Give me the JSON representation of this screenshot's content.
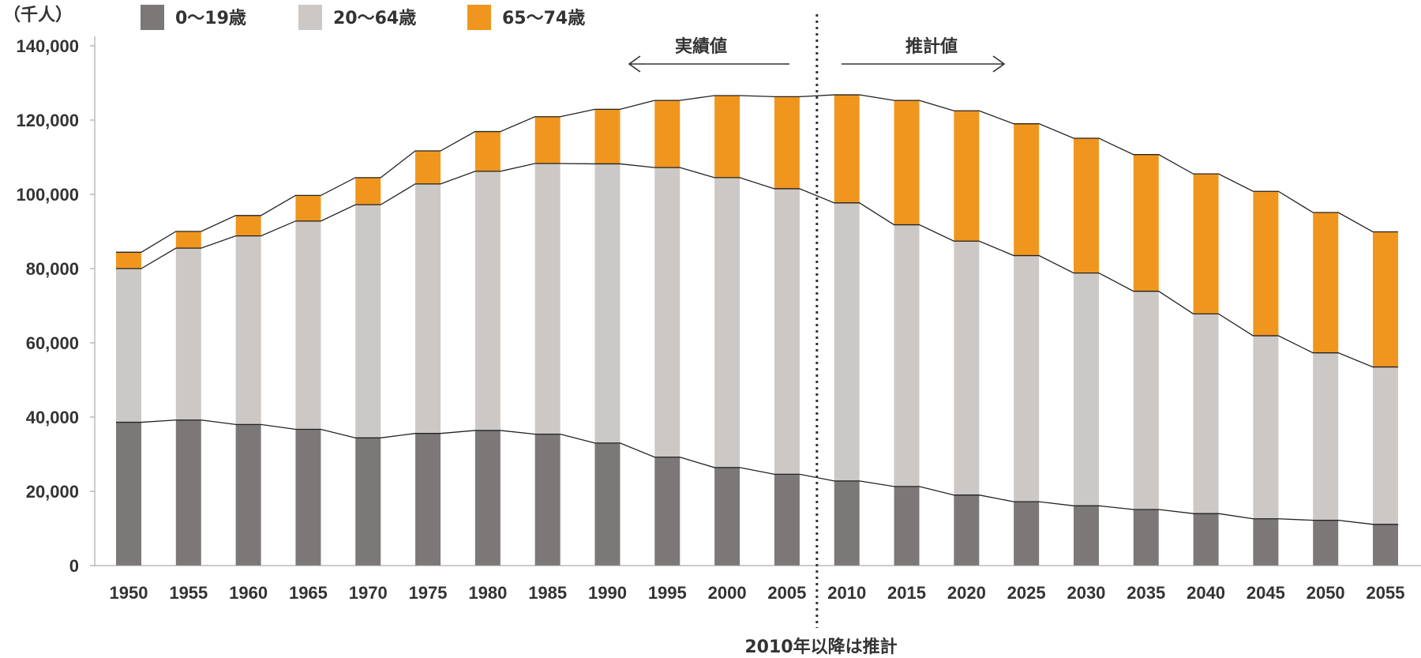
{
  "chart_data": {
    "type": "bar",
    "stacked": true,
    "unit_label": "（千人）",
    "categories": [
      "1950",
      "1955",
      "1960",
      "1965",
      "1970",
      "1975",
      "1980",
      "1985",
      "1990",
      "1995",
      "2000",
      "2005",
      "2010",
      "2015",
      "2020",
      "2025",
      "2030",
      "2035",
      "2040",
      "2045",
      "2050",
      "2055"
    ],
    "series": [
      {
        "name": "0〜19歳",
        "color": "#7b7877",
        "values": [
          38600,
          39200,
          38000,
          36700,
          34400,
          35600,
          36400,
          35400,
          33000,
          29200,
          26400,
          24600,
          22800,
          21300,
          19000,
          17200,
          16100,
          15100,
          14000,
          12600,
          12200,
          11100
        ]
      },
      {
        "name": "20〜64歳",
        "color": "#ccc8c6",
        "values": [
          41400,
          46300,
          50800,
          56100,
          62800,
          67200,
          69800,
          72900,
          75200,
          78000,
          78100,
          76900,
          74900,
          70500,
          68400,
          66300,
          62700,
          58800,
          53800,
          49300,
          45100,
          42400
        ]
      },
      {
        "name": "65〜74歳",
        "color": "#f0961e",
        "values": [
          4400,
          4500,
          5500,
          6900,
          7300,
          8900,
          10700,
          12600,
          14700,
          18100,
          22100,
          24800,
          29100,
          33500,
          35100,
          35500,
          36300,
          36800,
          37700,
          38900,
          37800,
          36400
        ]
      }
    ],
    "ylim": [
      0,
      140000
    ],
    "yticks": [
      0,
      20000,
      40000,
      60000,
      80000,
      100000,
      120000,
      140000
    ],
    "ytick_labels": [
      "0",
      "20,000",
      "40,000",
      "60,000",
      "80,000",
      "100,000",
      "120,000",
      "140,000"
    ],
    "connector_lines": true,
    "divider_after": "2005",
    "annotations": {
      "actual": "実績値",
      "projected": "推計値",
      "bottom_note": "2010年以降は推計"
    },
    "grid": false,
    "legend_position": "top-left"
  }
}
